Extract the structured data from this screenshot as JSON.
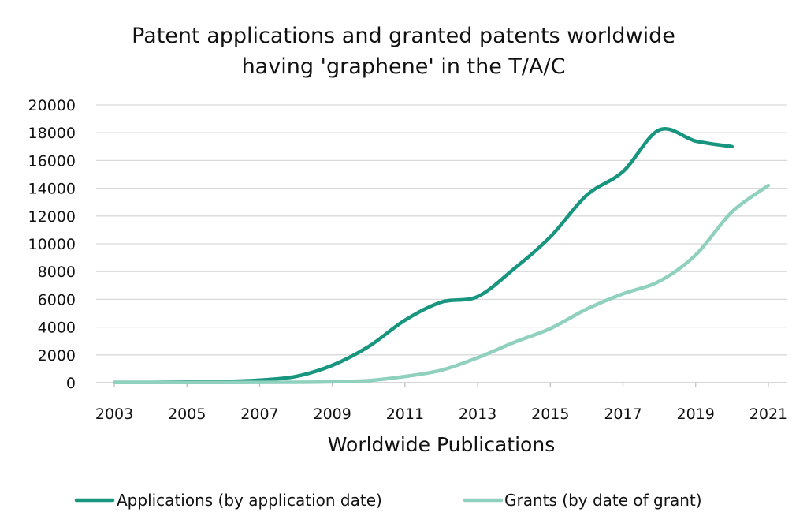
{
  "chart_data": {
    "type": "line",
    "title_lines": [
      "Patent applications and granted patents worldwide",
      "having 'graphene' in the T/A/C"
    ],
    "xlabel": "Worldwide Publications",
    "ylabel": "",
    "x": [
      2003,
      2004,
      2005,
      2006,
      2007,
      2008,
      2009,
      2010,
      2011,
      2012,
      2013,
      2014,
      2015,
      2016,
      2017,
      2018,
      2019,
      2020,
      2021
    ],
    "x_tick_labels": [
      "2003",
      "2005",
      "2007",
      "2009",
      "2011",
      "2013",
      "2015",
      "2017",
      "2019",
      "2021"
    ],
    "x_tick_values": [
      2003,
      2005,
      2007,
      2009,
      2011,
      2013,
      2015,
      2017,
      2019,
      2021
    ],
    "xlim": [
      2002.5,
      2021.5
    ],
    "ylim": [
      0,
      20000
    ],
    "y_ticks": [
      0,
      2000,
      4000,
      6000,
      8000,
      10000,
      12000,
      14000,
      16000,
      18000,
      20000
    ],
    "y_tick_labels": [
      "0",
      "2000",
      "4000",
      "6000",
      "8000",
      "10000",
      "12000",
      "14000",
      "16000",
      "18000",
      "20000"
    ],
    "grid": true,
    "legend_position": "bottom",
    "series": [
      {
        "name": "Applications (by application date)",
        "color": "#17957f",
        "x": [
          2003,
          2004,
          2005,
          2006,
          2007,
          2008,
          2009,
          2010,
          2011,
          2012,
          2013,
          2014,
          2015,
          2016,
          2017,
          2018,
          2019,
          2020
        ],
        "values": [
          20,
          25,
          40,
          80,
          180,
          450,
          1250,
          2600,
          4500,
          5800,
          6200,
          8200,
          10500,
          13500,
          15200,
          18200,
          17400,
          17000
        ]
      },
      {
        "name": "Grants (by date of grant)",
        "color": "#8fd1be",
        "x": [
          2003,
          2004,
          2005,
          2006,
          2007,
          2008,
          2009,
          2010,
          2011,
          2012,
          2013,
          2014,
          2015,
          2016,
          2017,
          2018,
          2019,
          2020,
          2021
        ],
        "values": [
          10,
          10,
          10,
          15,
          20,
          30,
          60,
          150,
          450,
          900,
          1800,
          2900,
          3900,
          5300,
          6400,
          7300,
          9200,
          12300,
          14200
        ]
      }
    ]
  }
}
